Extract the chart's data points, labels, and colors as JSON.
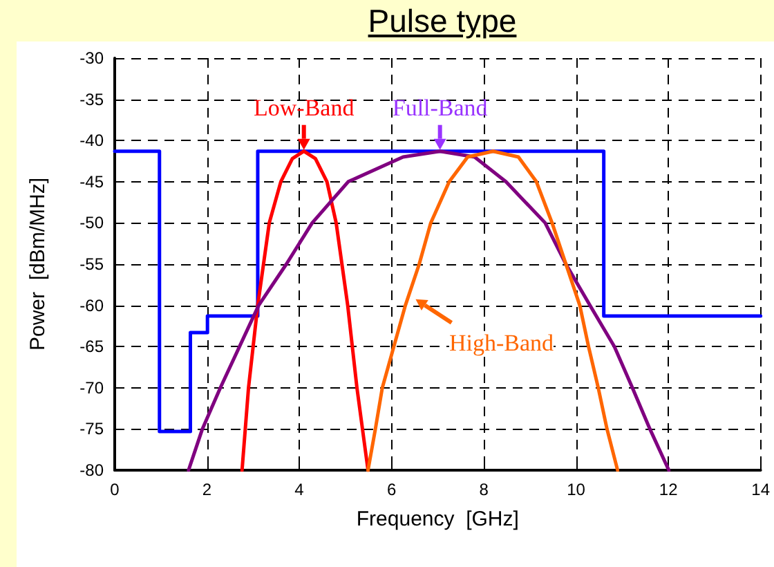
{
  "chart_data": {
    "type": "line",
    "title": "Pulse type",
    "xlabel": "Frequency  [GHz]",
    "ylabel": "Power  [dBm/MHz]",
    "xlim": [
      0,
      14
    ],
    "xticks": [
      0,
      2,
      4,
      6,
      8,
      10,
      12,
      14
    ],
    "ylim": [
      -80,
      -30
    ],
    "yticks": [
      -80,
      -75,
      -70,
      -65,
      -60,
      -55,
      -50,
      -45,
      -40,
      -35,
      -30
    ],
    "grid": true,
    "marker": "none",
    "line_style": "solid",
    "series": [
      {
        "type": "step",
        "color": "#0000ff",
        "x": [
          0,
          0.97,
          1.64,
          2.01,
          3.1,
          10.6,
          14
        ],
        "values": [
          -41.3,
          -75.3,
          -63.3,
          -61.3,
          -41.3,
          -61.3,
          -61.3
        ]
      },
      {
        "name": "Low-Band",
        "color": "#ff0000",
        "x": [
          2.76,
          2.9,
          3.1,
          3.35,
          3.6,
          3.85,
          4.1,
          4.35,
          4.6,
          4.8,
          5.05,
          5.25,
          5.49
        ],
        "values": [
          -80,
          -70,
          -60,
          -50,
          -45,
          -42.2,
          -41.3,
          -42.2,
          -45,
          -50,
          -60,
          -70,
          -80
        ]
      },
      {
        "name": "Full-Band",
        "color": "#800080",
        "x": [
          1.6,
          1.9,
          2.29,
          3.12,
          3.72,
          4.28,
          5.06,
          6.25,
          7.05,
          7.8,
          8.48,
          9.33,
          9.78,
          10.3,
          10.83,
          11.22,
          11.6,
          12.01
        ],
        "values": [
          -80,
          -75,
          -70,
          -60,
          -55,
          -50,
          -45,
          -42,
          -41.3,
          -42,
          -45,
          -50,
          -55,
          -60,
          -65,
          -70,
          -75,
          -80
        ]
      },
      {
        "name": "High-Band",
        "color": "#ff6600",
        "x": [
          5.49,
          5.65,
          5.8,
          6.05,
          6.3,
          6.6,
          6.85,
          7.25,
          7.65,
          8.2,
          8.75,
          9.14,
          9.48,
          9.78,
          10.08,
          10.27,
          10.48,
          10.67,
          10.9
        ],
        "values": [
          -80,
          -75,
          -70,
          -65,
          -60,
          -55,
          -50,
          -45,
          -42,
          -41.3,
          -42,
          -45,
          -50,
          -55,
          -60,
          -65,
          -70,
          -75,
          -80
        ]
      }
    ]
  }
}
